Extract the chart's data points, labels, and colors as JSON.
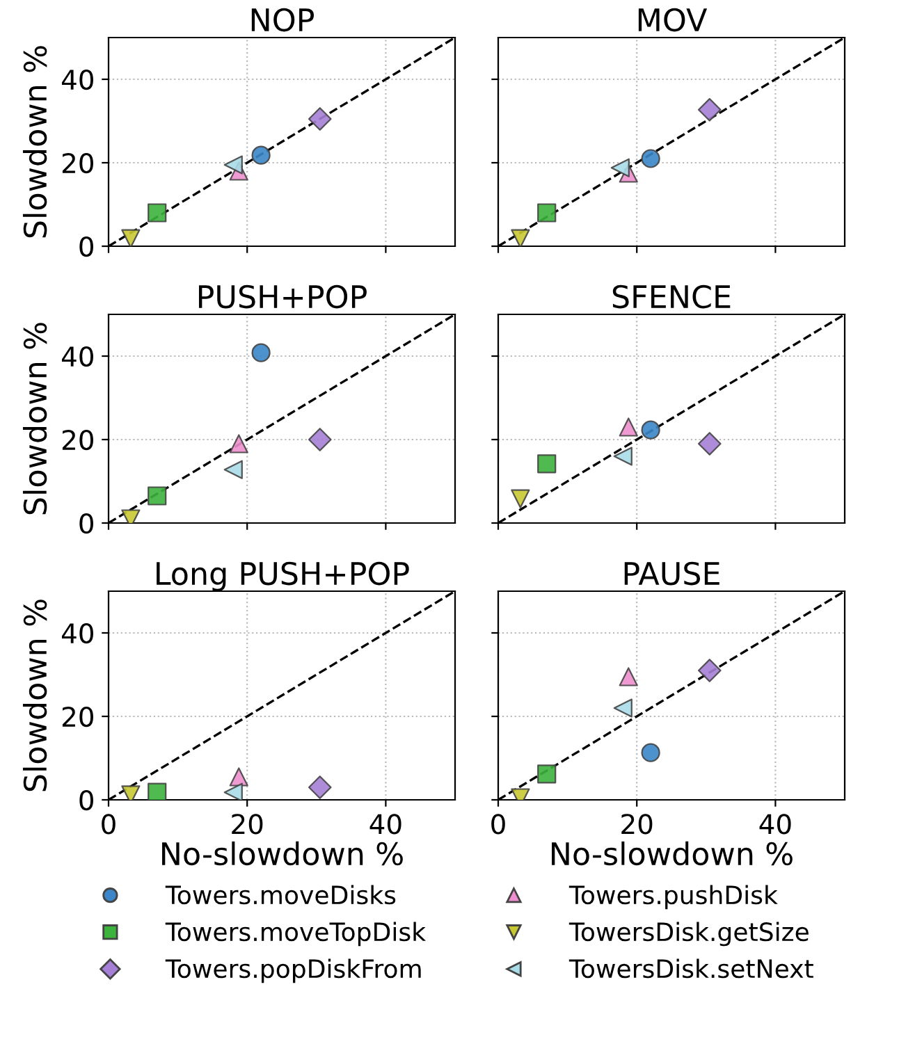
{
  "chart_data": [
    {
      "type": "scatter",
      "title": "NOP",
      "ylabel": "Slowdown %",
      "xlim": [
        0,
        50
      ],
      "ylim": [
        0,
        50
      ],
      "xticks": [
        0,
        20,
        40
      ],
      "yticks": [
        0,
        20,
        40
      ],
      "grid": true,
      "tick_labels": "y",
      "legend": "bottom",
      "series": [
        {
          "name": "Towers.moveDisks",
          "color": "#3a86c8",
          "marker": "circle",
          "x": [
            22
          ],
          "values": [
            21.8
          ]
        },
        {
          "name": "Towers.moveTopDisk",
          "color": "#3cb33c",
          "marker": "square",
          "x": [
            7
          ],
          "values": [
            8
          ]
        },
        {
          "name": "Towers.popDiskFrom",
          "color": "#a67fd6",
          "marker": "diamond",
          "x": [
            30.5
          ],
          "values": [
            30.5
          ]
        },
        {
          "name": "Towers.pushDisk",
          "color": "#ee8fcf",
          "marker": "triangle",
          "x": [
            18.8
          ],
          "values": [
            18
          ]
        },
        {
          "name": "TowersDisk.getSize",
          "color": "#c8c832",
          "marker": "triangle-down",
          "x": [
            3.2
          ],
          "values": [
            1.8
          ]
        },
        {
          "name": "TowersDisk.setNext",
          "color": "#a8dce8",
          "marker": "triangle-left",
          "x": [
            18
          ],
          "values": [
            19.5
          ]
        },
        {
          "type": "line",
          "color": "#000000",
          "line_style": "dashed",
          "marker": "none",
          "x": [
            0,
            50
          ],
          "values": [
            0,
            50
          ]
        }
      ]
    },
    {
      "type": "scatter",
      "title": "MOV",
      "xlim": [
        0,
        50
      ],
      "ylim": [
        0,
        50
      ],
      "xticks": [
        0,
        20,
        40
      ],
      "yticks": [
        0,
        20,
        40
      ],
      "grid": true,
      "tick_labels": false,
      "series": [
        {
          "name": "Towers.moveDisks",
          "color": "#3a86c8",
          "marker": "circle",
          "x": [
            22
          ],
          "values": [
            21
          ]
        },
        {
          "name": "Towers.moveTopDisk",
          "color": "#3cb33c",
          "marker": "square",
          "x": [
            7
          ],
          "values": [
            8
          ]
        },
        {
          "name": "Towers.popDiskFrom",
          "color": "#a67fd6",
          "marker": "diamond",
          "x": [
            30.5
          ],
          "values": [
            32.7
          ]
        },
        {
          "name": "Towers.pushDisk",
          "color": "#ee8fcf",
          "marker": "triangle",
          "x": [
            18.8
          ],
          "values": [
            17.5
          ]
        },
        {
          "name": "TowersDisk.getSize",
          "color": "#c8c832",
          "marker": "triangle-down",
          "x": [
            3.2
          ],
          "values": [
            1.8
          ]
        },
        {
          "name": "TowersDisk.setNext",
          "color": "#a8dce8",
          "marker": "triangle-left",
          "x": [
            17.6
          ],
          "values": [
            18.8
          ]
        },
        {
          "type": "line",
          "color": "#000000",
          "line_style": "dashed",
          "marker": "none",
          "x": [
            0,
            50
          ],
          "values": [
            0,
            50
          ]
        }
      ]
    },
    {
      "type": "scatter",
      "title": "PUSH+POP",
      "ylabel": "Slowdown %",
      "xlim": [
        0,
        50
      ],
      "ylim": [
        0,
        50
      ],
      "xticks": [
        0,
        20,
        40
      ],
      "yticks": [
        0,
        20,
        40
      ],
      "grid": true,
      "tick_labels": "y",
      "series": [
        {
          "name": "Towers.moveDisks",
          "color": "#3a86c8",
          "marker": "circle",
          "x": [
            22
          ],
          "values": [
            40.8
          ]
        },
        {
          "name": "Towers.moveTopDisk",
          "color": "#3cb33c",
          "marker": "square",
          "x": [
            7
          ],
          "values": [
            6.5
          ]
        },
        {
          "name": "Towers.popDiskFrom",
          "color": "#a67fd6",
          "marker": "diamond",
          "x": [
            30.5
          ],
          "values": [
            20
          ]
        },
        {
          "name": "Towers.pushDisk",
          "color": "#ee8fcf",
          "marker": "triangle",
          "x": [
            18.8
          ],
          "values": [
            19
          ]
        },
        {
          "name": "TowersDisk.getSize",
          "color": "#c8c832",
          "marker": "triangle-down",
          "x": [
            3.2
          ],
          "values": [
            1
          ]
        },
        {
          "name": "TowersDisk.setNext",
          "color": "#a8dce8",
          "marker": "triangle-left",
          "x": [
            18
          ],
          "values": [
            12.8
          ]
        },
        {
          "type": "line",
          "color": "#000000",
          "line_style": "dashed",
          "marker": "none",
          "x": [
            0,
            50
          ],
          "values": [
            0,
            50
          ]
        }
      ]
    },
    {
      "type": "scatter",
      "title": "SFENCE",
      "xlim": [
        0,
        50
      ],
      "ylim": [
        0,
        50
      ],
      "xticks": [
        0,
        20,
        40
      ],
      "yticks": [
        0,
        20,
        40
      ],
      "grid": true,
      "tick_labels": false,
      "series": [
        {
          "name": "Towers.moveDisks",
          "color": "#3a86c8",
          "marker": "circle",
          "x": [
            22
          ],
          "values": [
            22.3
          ]
        },
        {
          "name": "Towers.moveTopDisk",
          "color": "#3cb33c",
          "marker": "square",
          "x": [
            7
          ],
          "values": [
            14.2
          ]
        },
        {
          "name": "Towers.popDiskFrom",
          "color": "#a67fd6",
          "marker": "diamond",
          "x": [
            30.5
          ],
          "values": [
            19
          ]
        },
        {
          "name": "Towers.pushDisk",
          "color": "#ee8fcf",
          "marker": "triangle",
          "x": [
            18.8
          ],
          "values": [
            23
          ]
        },
        {
          "name": "TowersDisk.getSize",
          "color": "#c8c832",
          "marker": "triangle-down",
          "x": [
            3.2
          ],
          "values": [
            5.8
          ]
        },
        {
          "name": "TowersDisk.setNext",
          "color": "#a8dce8",
          "marker": "triangle-left",
          "x": [
            18
          ],
          "values": [
            16
          ]
        },
        {
          "type": "line",
          "color": "#000000",
          "line_style": "dashed",
          "marker": "none",
          "x": [
            0,
            50
          ],
          "values": [
            0,
            50
          ]
        }
      ]
    },
    {
      "type": "scatter",
      "title": "Long PUSH+POP",
      "xlabel": "No-slowdown %",
      "ylabel": "Slowdown %",
      "xlim": [
        0,
        50
      ],
      "ylim": [
        0,
        50
      ],
      "xticks": [
        0,
        20,
        40
      ],
      "yticks": [
        0,
        20,
        40
      ],
      "grid": true,
      "series": [
        {
          "name": "Towers.moveTopDisk",
          "color": "#3cb33c",
          "marker": "square",
          "x": [
            7
          ],
          "values": [
            1.8
          ]
        },
        {
          "name": "Towers.popDiskFrom",
          "color": "#a67fd6",
          "marker": "diamond",
          "x": [
            30.5
          ],
          "values": [
            3
          ]
        },
        {
          "name": "Towers.pushDisk",
          "color": "#ee8fcf",
          "marker": "triangle",
          "x": [
            18.8
          ],
          "values": [
            5.5
          ]
        },
        {
          "name": "TowersDisk.getSize",
          "color": "#c8c832",
          "marker": "triangle-down",
          "x": [
            3.2
          ],
          "values": [
            1.2
          ]
        },
        {
          "name": "TowersDisk.setNext",
          "color": "#a8dce8",
          "marker": "triangle-left",
          "x": [
            18
          ],
          "values": [
            1.8
          ]
        },
        {
          "type": "line",
          "color": "#000000",
          "line_style": "dashed",
          "marker": "none",
          "x": [
            0,
            50
          ],
          "values": [
            0,
            50
          ]
        }
      ]
    },
    {
      "type": "scatter",
      "title": "PAUSE",
      "xlabel": "No-slowdown %",
      "xlim": [
        0,
        50
      ],
      "ylim": [
        0,
        50
      ],
      "xticks": [
        0,
        20,
        40
      ],
      "yticks": [
        0,
        20,
        40
      ],
      "grid": true,
      "tick_labels": "x",
      "series": [
        {
          "name": "Towers.moveDisks",
          "color": "#3a86c8",
          "marker": "circle",
          "x": [
            22
          ],
          "values": [
            11.3
          ]
        },
        {
          "name": "Towers.moveTopDisk",
          "color": "#3cb33c",
          "marker": "square",
          "x": [
            7
          ],
          "values": [
            6.2
          ]
        },
        {
          "name": "Towers.popDiskFrom",
          "color": "#a67fd6",
          "marker": "diamond",
          "x": [
            30.5
          ],
          "values": [
            31
          ]
        },
        {
          "name": "Towers.pushDisk",
          "color": "#ee8fcf",
          "marker": "triangle",
          "x": [
            18.8
          ],
          "values": [
            29.5
          ]
        },
        {
          "name": "TowersDisk.getSize",
          "color": "#c8c832",
          "marker": "triangle-down",
          "x": [
            3.2
          ],
          "values": [
            0.5
          ]
        },
        {
          "name": "TowersDisk.setNext",
          "color": "#a8dce8",
          "marker": "triangle-left",
          "x": [
            18
          ],
          "values": [
            22
          ]
        },
        {
          "type": "line",
          "color": "#000000",
          "line_style": "dashed",
          "marker": "none",
          "x": [
            0,
            50
          ],
          "values": [
            0,
            50
          ]
        }
      ]
    }
  ]
}
